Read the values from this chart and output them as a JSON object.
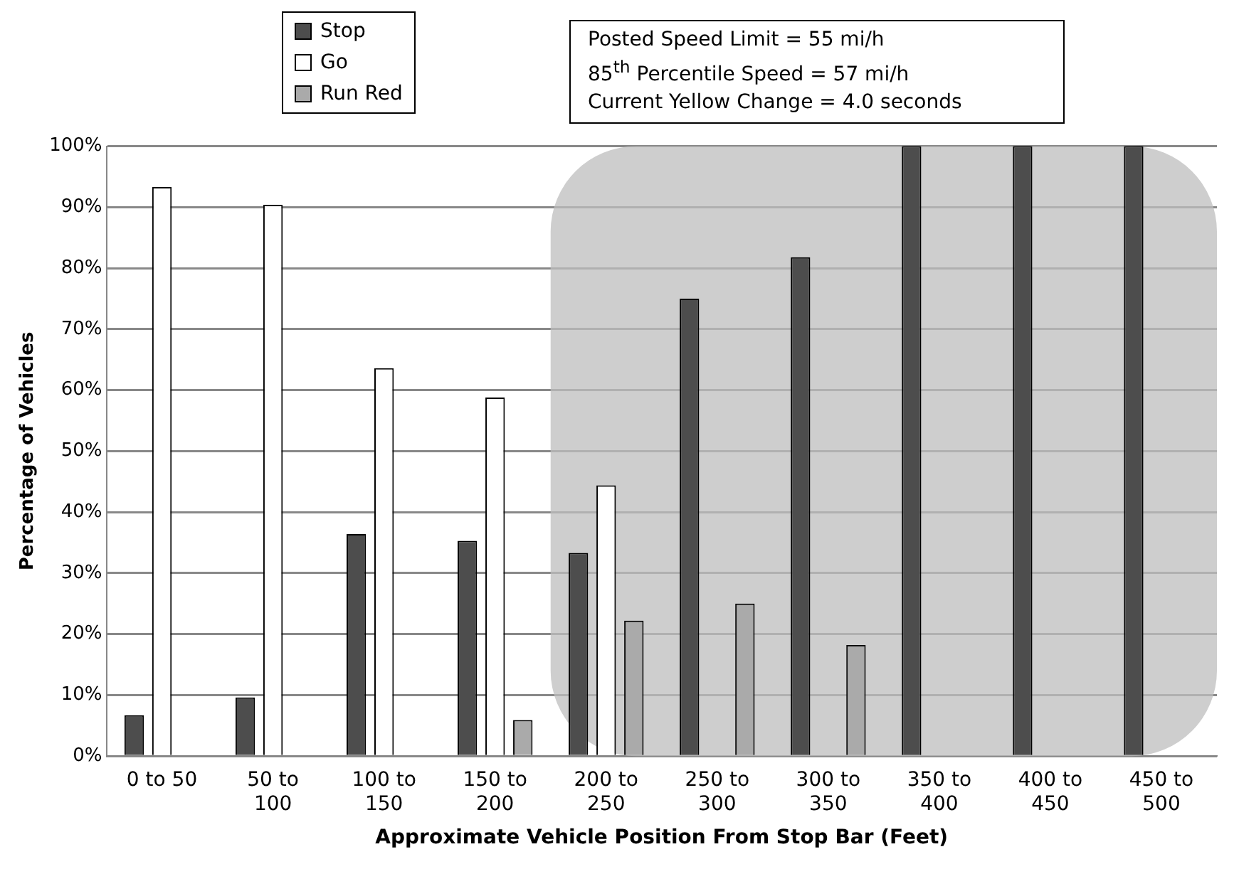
{
  "chart_data": {
    "type": "bar",
    "xlabel": "Approximate Vehicle Position From Stop Bar (Feet)",
    "ylabel": "Percentage of Vehicles",
    "categories": [
      "0 to 50",
      "50 to 100",
      "100 to 150",
      "150 to 200",
      "200 to 250",
      "250 to 300",
      "300 to 350",
      "350 to 400",
      "400 to 450",
      "450 to 500"
    ],
    "series": [
      {
        "name": "Stop",
        "color": "#4d4d4d",
        "values": [
          6.7,
          9.6,
          36.4,
          35.3,
          33.3,
          75,
          81.8,
          100,
          100,
          100
        ]
      },
      {
        "name": "Go",
        "color": "#ffffff",
        "values": [
          93.3,
          90.4,
          63.6,
          58.8,
          44.4,
          0,
          0,
          0,
          0,
          0
        ]
      },
      {
        "name": "Run Red",
        "color": "#aaaaaa",
        "values": [
          0,
          0,
          0,
          5.9,
          22.2,
          25,
          18.2,
          0,
          0,
          0
        ]
      }
    ],
    "ylim": [
      0,
      100
    ],
    "yticks": [
      {
        "value": 0,
        "label": "0%"
      },
      {
        "value": 10,
        "label": "10%"
      },
      {
        "value": 20,
        "label": "20%"
      },
      {
        "value": 30,
        "label": "30%"
      },
      {
        "value": 40,
        "label": "40%"
      },
      {
        "value": 50,
        "label": "50%"
      },
      {
        "value": 60,
        "label": "60%"
      },
      {
        "value": 70,
        "label": "70%"
      },
      {
        "value": 80,
        "label": "80%"
      },
      {
        "value": 90,
        "label": "90%"
      },
      {
        "value": 100,
        "label": "100%"
      }
    ],
    "grid": "y",
    "legend": "top",
    "bands": [
      {
        "axis": "x",
        "from": "200 to 250",
        "to": "450 to 500",
        "color": "#bdbdbd"
      }
    ],
    "annotations": [
      "Posted Speed Limit = 55 mi/h",
      "85$^{th}$ Percentile Speed = 57 mi/h",
      "Current Yellow Change = 4.0 seconds"
    ]
  }
}
